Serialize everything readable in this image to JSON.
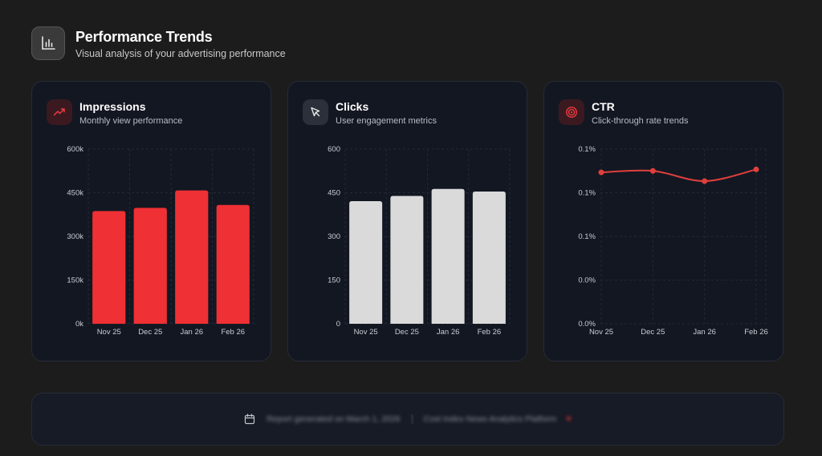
{
  "header": {
    "title": "Performance Trends",
    "subtitle": "Visual analysis of your advertising performance",
    "icon": "bar-chart-icon"
  },
  "cards": [
    {
      "title": "Impressions",
      "subtitle": "Monthly view performance",
      "icon": "trending-up-icon"
    },
    {
      "title": "Clicks",
      "subtitle": "User engagement metrics",
      "icon": "cursor-icon"
    },
    {
      "title": "CTR",
      "subtitle": "Click-through rate trends",
      "icon": "target-icon"
    }
  ],
  "chart_data": [
    {
      "type": "bar",
      "categories": [
        "Nov 25",
        "Dec 25",
        "Jan 26",
        "Feb 26"
      ],
      "values": [
        387000,
        398000,
        458000,
        408000
      ],
      "ylim": [
        0,
        600000
      ],
      "yticks": [
        "0k",
        "150k",
        "300k",
        "450k",
        "600k"
      ],
      "grid": true,
      "color": "#ef3034"
    },
    {
      "type": "bar",
      "categories": [
        "Nov 25",
        "Dec 25",
        "Jan 26",
        "Feb 26"
      ],
      "values": [
        421,
        439,
        463,
        454
      ],
      "ylim": [
        0,
        600
      ],
      "yticks": [
        "0",
        "150",
        "300",
        "450",
        "600"
      ],
      "grid": true,
      "color": "#dadada"
    },
    {
      "type": "line",
      "categories": [
        "Nov 25",
        "Dec 25",
        "Jan 26",
        "Feb 26"
      ],
      "values": [
        0.104,
        0.105,
        0.098,
        0.106
      ],
      "ylim": [
        0,
        0.12
      ],
      "yticks": [
        "0.0%",
        "0.0%",
        "0.1%",
        "0.1%",
        "0.1%"
      ],
      "grid": true,
      "color": "#e0403c"
    }
  ],
  "footer": {
    "report_text": "Report generated on March 1, 2026",
    "platform_text": "Cost Index News Analytics Platform",
    "icon": "calendar-icon"
  }
}
